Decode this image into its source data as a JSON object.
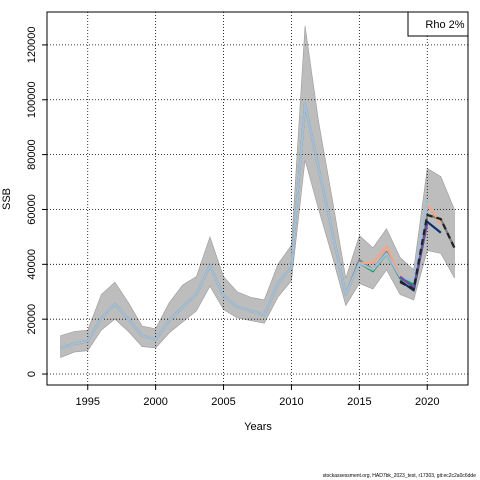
{
  "chart_data": {
    "type": "line",
    "xlabel": "Years",
    "ylabel": "SSB",
    "xlim": [
      1992,
      2023
    ],
    "ylim": [
      -4000,
      132000
    ],
    "x_ticks": [
      1995,
      2000,
      2005,
      2010,
      2015,
      2020
    ],
    "y_ticks": [
      0,
      20000,
      40000,
      60000,
      80000,
      100000,
      120000
    ],
    "grid": true,
    "legend": {
      "position": "top-right",
      "text": "Rho 2%"
    },
    "caption": "stockassessment.org, HAD7bk_2023_test, r17303, git:ec2c2a0c6dde",
    "confidence_band": {
      "x": [
        1993,
        1994,
        1995,
        1996,
        1997,
        1998,
        1999,
        2000,
        2001,
        2002,
        2003,
        2004,
        2005,
        2006,
        2007,
        2008,
        2009,
        2010,
        2011,
        2012,
        2013,
        2014,
        2015,
        2016,
        2017,
        2018,
        2019,
        2020,
        2021,
        2022
      ],
      "lower": [
        6000,
        8000,
        8500,
        16000,
        20000,
        15500,
        10000,
        9500,
        15000,
        19000,
        23000,
        32000,
        23500,
        20500,
        19500,
        18500,
        28000,
        34000,
        78000,
        60000,
        43000,
        25000,
        33000,
        31000,
        38000,
        29000,
        27000,
        45000,
        44000,
        35000
      ],
      "upper": [
        14000,
        15500,
        16000,
        29000,
        33500,
        26000,
        17500,
        16500,
        26000,
        32500,
        35500,
        50000,
        35500,
        30000,
        28000,
        27000,
        40000,
        47000,
        127000,
        92000,
        64000,
        35000,
        50500,
        46000,
        53000,
        42500,
        38000,
        75000,
        72000,
        60000
      ]
    },
    "series": [
      {
        "color": "#7f7f7f",
        "x": [
          1993,
          1994,
          1995,
          1996,
          1997,
          1998,
          1999,
          2000,
          2001,
          2002,
          2003,
          2004,
          2005,
          2006,
          2007,
          2008,
          2009,
          2010,
          2011,
          2012,
          2013,
          2014,
          2015,
          2016,
          2017,
          2018,
          2019,
          2020,
          2021,
          2022
        ],
        "values": [
          9500,
          11000,
          12000,
          20500,
          25500,
          20000,
          14000,
          12500,
          19500,
          24500,
          29000,
          39500,
          28500,
          24500,
          23000,
          21500,
          33000,
          39000,
          98500,
          75000,
          52000,
          29000,
          41500,
          38000,
          44500,
          35000,
          32000,
          58000,
          56500,
          46000
        ]
      },
      {
        "color": "#f4a582",
        "x": [
          1993,
          1994,
          1995,
          1996,
          1997,
          1998,
          1999,
          2000,
          2001,
          2002,
          2003,
          2004,
          2005,
          2006,
          2007,
          2008,
          2009,
          2010,
          2011,
          2012,
          2013,
          2014,
          2015,
          2016,
          2017,
          2018,
          2019,
          2020,
          2021
        ],
        "values": [
          9400,
          11000,
          12000,
          20500,
          25500,
          20000,
          14000,
          12500,
          19500,
          24500,
          29000,
          39500,
          28500,
          24500,
          23000,
          21500,
          33000,
          39000,
          98500,
          75000,
          52000,
          29000,
          40500,
          40500,
          46500,
          36000,
          33500,
          62000,
          55000
        ]
      },
      {
        "color": "#7fcdbb",
        "x": [
          1993,
          1994,
          1995,
          1996,
          1997,
          1998,
          1999,
          2000,
          2001,
          2002,
          2003,
          2004,
          2005,
          2006,
          2007,
          2008,
          2009,
          2010,
          2011,
          2012,
          2013,
          2014,
          2015,
          2016,
          2017,
          2018,
          2019,
          2020
        ],
        "values": [
          9400,
          11000,
          12000,
          20500,
          25500,
          20000,
          14000,
          12500,
          19500,
          24500,
          29000,
          39500,
          28500,
          24500,
          23000,
          21500,
          33000,
          39000,
          98500,
          75000,
          52000,
          29000,
          40500,
          38000,
          43500,
          35500,
          33500,
          63000
        ]
      },
      {
        "color": "#1a9850",
        "x": [
          1993,
          1994,
          1995,
          1996,
          1997,
          1998,
          1999,
          2000,
          2001,
          2002,
          2003,
          2004,
          2005,
          2006,
          2007,
          2008,
          2009,
          2010,
          2011,
          2012,
          2013,
          2014,
          2015,
          2016,
          2017,
          2018,
          2019
        ],
        "values": [
          9500,
          11000,
          12000,
          20500,
          25500,
          20000,
          14000,
          12500,
          19500,
          24500,
          29000,
          39500,
          28500,
          24500,
          23000,
          21500,
          33000,
          39000,
          98500,
          75000,
          52000,
          29000,
          40500,
          37500,
          44000,
          35000,
          32500
        ]
      },
      {
        "color": "#a6bddb",
        "x": [
          1993,
          1994,
          1995,
          1996,
          1997,
          1998,
          1999,
          2000,
          2001,
          2002,
          2003,
          2004,
          2005,
          2006,
          2007,
          2008,
          2009,
          2010,
          2011,
          2012,
          2013,
          2014,
          2015,
          2016,
          2017,
          2018,
          2019,
          2020
        ],
        "values": [
          9500,
          11000,
          12000,
          20500,
          25500,
          20000,
          14000,
          12500,
          19500,
          24500,
          29000,
          39500,
          28500,
          24500,
          23000,
          21500,
          33000,
          39000,
          98500,
          75000,
          52000,
          29000,
          40500,
          38000,
          44000,
          35500,
          34000,
          62500
        ]
      },
      {
        "color": "#08306b",
        "x": [
          2018,
          2019,
          2020,
          2021
        ],
        "values": [
          34000,
          30500,
          55500,
          51500
        ]
      },
      {
        "color": "#6a51a3",
        "x": [
          2018,
          2019,
          2020
        ],
        "values": [
          35500,
          31500,
          55000
        ]
      },
      {
        "color": "#222222",
        "dashed": true,
        "x": [
          2018,
          2019,
          2020,
          2021,
          2022
        ],
        "values": [
          33500,
          31000,
          58000,
          56500,
          46000
        ]
      }
    ]
  }
}
